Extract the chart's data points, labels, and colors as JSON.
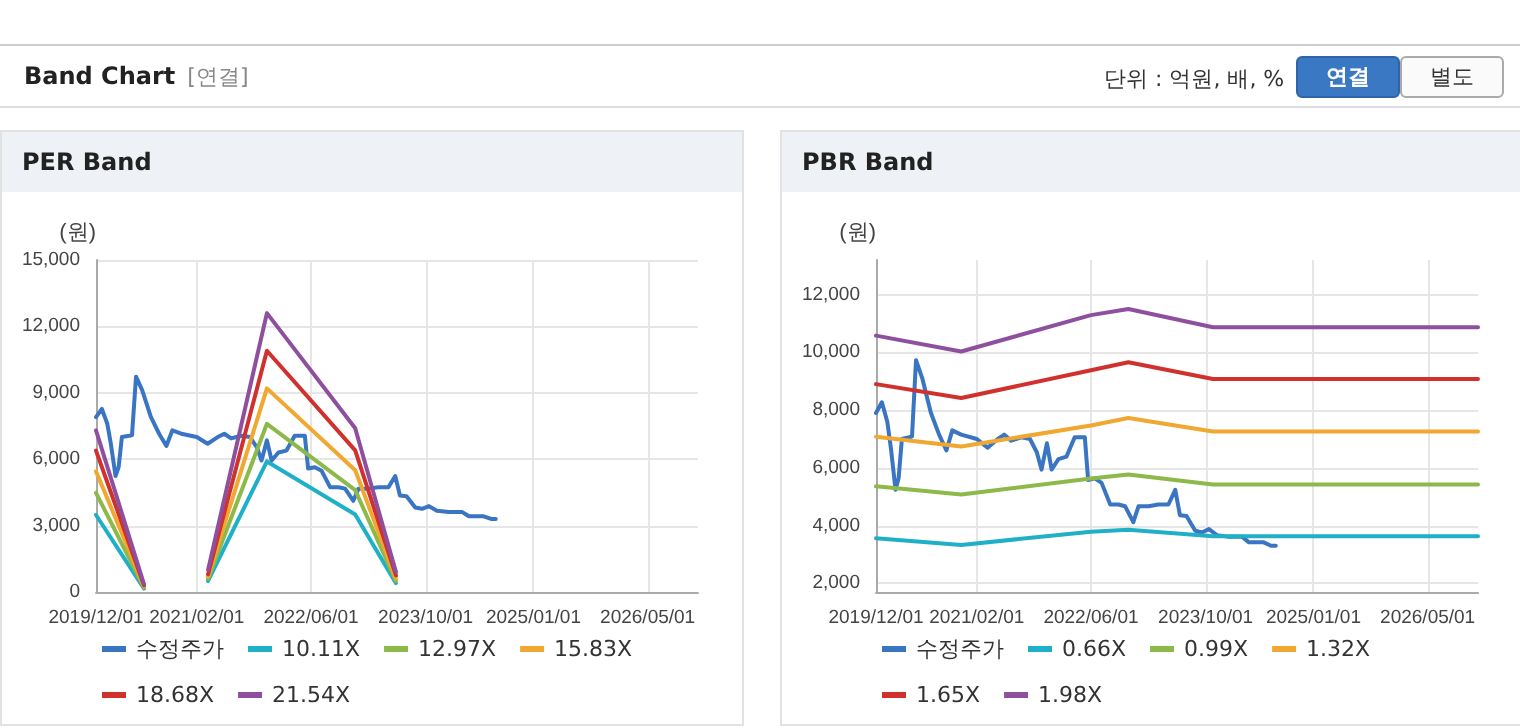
{
  "chart_data": [
    {
      "type": "other",
      "title": "Band Chart",
      "annotations": [
        "[연결]",
        "단위 : 억원, 배, %",
        "연결",
        "별도"
      ]
    },
    {
      "type": "line",
      "title": "PER Band",
      "ylabel": "(원)",
      "grid": true,
      "legend": "bottom",
      "marker": "none",
      "line_style": "solid",
      "xlim": [
        "2019-12-01",
        "2026-12-01"
      ],
      "xticks": [
        {
          "value": "2019-12-01",
          "label": "2019/12/01"
        },
        {
          "value": "2021-02-01",
          "label": "2021/02/01"
        },
        {
          "value": "2022-06-01",
          "label": "2022/06/01"
        },
        {
          "value": "2023-10-01",
          "label": "2023/10/01"
        },
        {
          "value": "2025-01-01",
          "label": "2025/01/01"
        },
        {
          "value": "2026-05-01",
          "label": "2026/05/01"
        }
      ],
      "ylim": [
        0,
        15000
      ],
      "yticks": [
        {
          "value": 0,
          "label": "0"
        },
        {
          "value": 3000,
          "label": "3,000"
        },
        {
          "value": 6000,
          "label": "6,000"
        },
        {
          "value": 9000,
          "label": "9,000"
        },
        {
          "value": 12000,
          "label": "12,000"
        },
        {
          "value": 15000,
          "label": "15,000"
        }
      ],
      "series": [
        {
          "name": "수정주가",
          "color": "#3a75c4",
          "x": [
            "2019-12-01",
            "2019-12-26",
            "2020-01-18",
            "2020-02-02",
            "2020-02-22",
            "2020-03-06",
            "2020-03-20",
            "2020-04-21",
            "2020-05-02",
            "2020-05-19",
            "2020-06-14",
            "2020-07-21",
            "2020-08-25",
            "2020-09-25",
            "2020-10-20",
            "2020-11-27",
            "2021-02-01",
            "2021-03-19",
            "2021-05-01",
            "2021-05-29",
            "2021-06-27",
            "2021-08-09",
            "2021-09-15",
            "2021-10-14",
            "2021-11-03",
            "2021-11-26",
            "2021-12-16",
            "2022-01-14",
            "2022-02-17",
            "2022-03-24",
            "2022-05-06",
            "2022-05-20",
            "2022-06-18",
            "2022-07-16",
            "2022-08-22",
            "2022-09-26",
            "2022-10-24",
            "2022-11-28",
            "2022-12-20",
            "2023-02-01",
            "2023-03-14",
            "2023-04-26",
            "2023-05-25",
            "2023-06-14",
            "2023-07-12",
            "2023-08-18",
            "2023-09-16",
            "2023-10-15",
            "2023-11-18",
            "2024-01-08",
            "2024-03-05",
            "2024-04-02",
            "2024-06-04",
            "2024-07-05",
            "2024-07-25"
          ],
          "values": [
            7900,
            8270,
            7600,
            6700,
            5240,
            5640,
            7000,
            7060,
            7090,
            9730,
            9120,
            7910,
            7150,
            6600,
            7300,
            7150,
            7000,
            6700,
            7000,
            7150,
            6940,
            7060,
            7000,
            6540,
            5940,
            6850,
            5940,
            6300,
            6390,
            7060,
            7060,
            5580,
            5640,
            5480,
            4730,
            4730,
            4670,
            4120,
            4670,
            4670,
            4730,
            4730,
            5240,
            4360,
            4330,
            3820,
            3760,
            3880,
            3670,
            3610,
            3610,
            3420,
            3420,
            3300,
            3300
          ]
        },
        {
          "name": "10.11X",
          "color": "#1fb0c8",
          "x": [
            "2019-12-01",
            "2020-06-22",
            "2020-12-01",
            "2021-03-21",
            "2021-11-26",
            "2022-12-06",
            "2023-05-28"
          ],
          "values": [
            3480,
            150,
            null,
            500,
            5900,
            3500,
            400
          ]
        },
        {
          "name": "12.97X",
          "color": "#8db84a",
          "x": [
            "2019-12-01",
            "2020-06-22",
            "2020-12-01",
            "2021-03-21",
            "2021-11-26",
            "2022-12-06",
            "2023-05-28"
          ],
          "values": [
            4480,
            200,
            null,
            600,
            7600,
            4600,
            500
          ]
        },
        {
          "name": "15.83X",
          "color": "#f0a830",
          "x": [
            "2019-12-01",
            "2020-06-22",
            "2020-12-01",
            "2021-03-21",
            "2021-11-26",
            "2022-12-06",
            "2023-05-28"
          ],
          "values": [
            5450,
            250,
            null,
            700,
            9200,
            5500,
            600
          ]
        },
        {
          "name": "18.68X",
          "color": "#d0312d",
          "x": [
            "2019-12-01",
            "2020-06-22",
            "2020-12-01",
            "2021-03-21",
            "2021-11-26",
            "2022-12-06",
            "2023-05-28"
          ],
          "values": [
            6390,
            300,
            null,
            800,
            10900,
            6400,
            750
          ]
        },
        {
          "name": "21.54X",
          "color": "#8e4f9e",
          "x": [
            "2019-12-01",
            "2020-06-22",
            "2020-12-01",
            "2021-03-21",
            "2021-11-26",
            "2022-12-06",
            "2023-05-28"
          ],
          "values": [
            7300,
            350,
            null,
            1000,
            12600,
            7400,
            900
          ]
        }
      ]
    },
    {
      "type": "line",
      "title": "PBR Band",
      "ylabel": "(원)",
      "grid": true,
      "legend": "bottom",
      "marker": "none",
      "line_style": "solid",
      "xlim": [
        "2019-12-01",
        "2026-12-01"
      ],
      "xticks": [
        {
          "value": "2019-12-01",
          "label": "2019/12/01"
        },
        {
          "value": "2021-02-01",
          "label": "2021/02/01"
        },
        {
          "value": "2022-06-01",
          "label": "2022/06/01"
        },
        {
          "value": "2023-10-01",
          "label": "2023/10/01"
        },
        {
          "value": "2025-01-01",
          "label": "2025/01/01"
        },
        {
          "value": "2026-05-01",
          "label": "2026/05/01"
        }
      ],
      "ylim": [
        1700,
        13200
      ],
      "yticks": [
        {
          "value": 2000,
          "label": "2,000"
        },
        {
          "value": 4000,
          "label": "4,000"
        },
        {
          "value": 6000,
          "label": "6,000"
        },
        {
          "value": 8000,
          "label": "8,000"
        },
        {
          "value": 10000,
          "label": "10,000"
        },
        {
          "value": 12000,
          "label": "12,000"
        }
      ],
      "series": [
        {
          "name": "수정주가",
          "color": "#3a75c4",
          "x": [
            "2019-12-01",
            "2019-12-26",
            "2020-01-18",
            "2020-02-02",
            "2020-02-22",
            "2020-03-06",
            "2020-03-20",
            "2020-04-21",
            "2020-05-02",
            "2020-05-19",
            "2020-06-14",
            "2020-07-21",
            "2020-08-25",
            "2020-09-25",
            "2020-10-20",
            "2020-11-27",
            "2021-02-01",
            "2021-03-19",
            "2021-05-01",
            "2021-05-29",
            "2021-06-27",
            "2021-08-09",
            "2021-09-15",
            "2021-10-14",
            "2021-11-03",
            "2021-11-26",
            "2021-12-16",
            "2022-01-14",
            "2022-02-17",
            "2022-03-24",
            "2022-05-06",
            "2022-05-20",
            "2022-06-18",
            "2022-07-16",
            "2022-08-22",
            "2022-09-26",
            "2022-10-24",
            "2022-11-28",
            "2022-12-20",
            "2023-02-01",
            "2023-03-14",
            "2023-04-26",
            "2023-05-25",
            "2023-06-14",
            "2023-07-12",
            "2023-08-18",
            "2023-09-16",
            "2023-10-15",
            "2023-11-18",
            "2024-01-08",
            "2024-03-05",
            "2024-04-02",
            "2024-06-04",
            "2024-07-05",
            "2024-07-25"
          ],
          "values": [
            7900,
            8270,
            7600,
            6700,
            5240,
            5640,
            7000,
            7060,
            7090,
            9730,
            9120,
            7910,
            7150,
            6600,
            7300,
            7150,
            7000,
            6700,
            7000,
            7150,
            6940,
            7060,
            7000,
            6540,
            5940,
            6850,
            5940,
            6300,
            6390,
            7060,
            7060,
            5580,
            5640,
            5480,
            4730,
            4730,
            4670,
            4120,
            4670,
            4670,
            4730,
            4730,
            5240,
            4360,
            4330,
            3820,
            3760,
            3880,
            3670,
            3610,
            3610,
            3420,
            3420,
            3300,
            3300
          ]
        },
        {
          "name": "0.66X",
          "color": "#1fb0c8",
          "x": [
            "2019-12-01",
            "2020-11-27",
            "2022-06-01",
            "2022-11-07",
            "2023-11-01",
            "2026-12-01"
          ],
          "values": [
            3560,
            3330,
            3790,
            3860,
            3630,
            3630
          ]
        },
        {
          "name": "0.99X",
          "color": "#8db84a",
          "x": [
            "2019-12-01",
            "2020-11-27",
            "2022-06-01",
            "2022-11-07",
            "2023-11-01",
            "2026-12-01"
          ],
          "values": [
            5360,
            5080,
            5630,
            5770,
            5420,
            5420
          ]
        },
        {
          "name": "1.32X",
          "color": "#f0a830",
          "x": [
            "2019-12-01",
            "2020-11-27",
            "2022-06-01",
            "2022-11-07",
            "2023-11-01",
            "2026-12-01"
          ],
          "values": [
            7080,
            6740,
            7470,
            7730,
            7260,
            7260
          ]
        },
        {
          "name": "1.65X",
          "color": "#d0312d",
          "x": [
            "2019-12-01",
            "2020-11-27",
            "2022-06-01",
            "2022-11-07",
            "2023-11-01",
            "2026-12-01"
          ],
          "values": [
            8900,
            8420,
            9380,
            9660,
            9080,
            9080
          ]
        },
        {
          "name": "1.98X",
          "color": "#8e4f9e",
          "x": [
            "2019-12-01",
            "2020-11-27",
            "2022-06-01",
            "2022-11-07",
            "2023-11-01",
            "2026-12-01"
          ],
          "values": [
            10580,
            10030,
            11290,
            11500,
            10870,
            10870
          ]
        }
      ]
    }
  ]
}
